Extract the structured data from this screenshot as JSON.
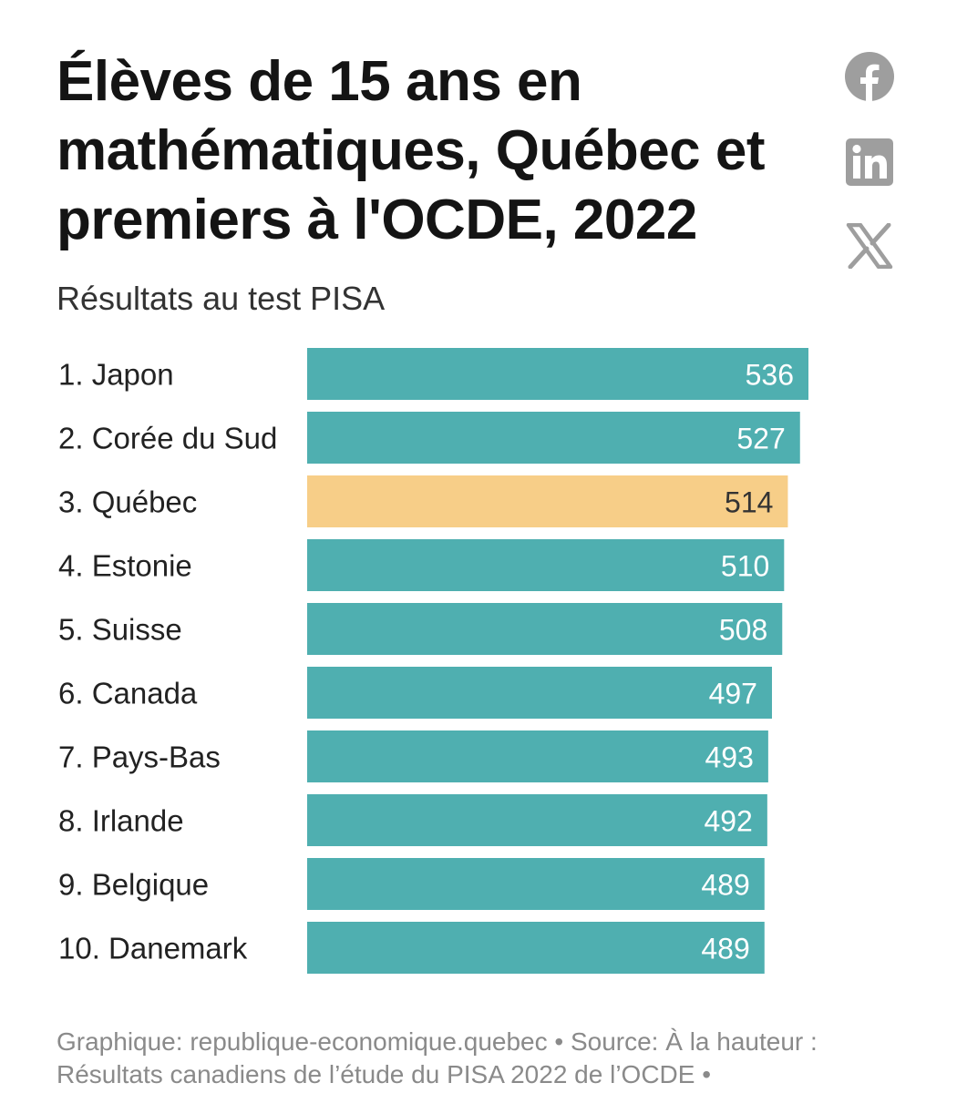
{
  "title": "Élèves de 15 ans en mathématiques, Québec et premiers à l'OCDE, 2022",
  "subtitle": "Résultats au test PISA",
  "share": {
    "icons": [
      "facebook-icon",
      "linkedin-icon",
      "x-icon"
    ],
    "icon_color": "#9e9e9e"
  },
  "footer": "Graphique: republique-economique.quebec • Source: À la hauteur : Résultats canadiens de l’étude du PISA 2022 de l’OCDE •",
  "chart_data": {
    "type": "bar",
    "orientation": "horizontal",
    "title": "Élèves de 15 ans en mathématiques, Québec et premiers à l'OCDE, 2022",
    "subtitle": "Résultats au test PISA",
    "categories": [
      "1. Japon",
      "2. Corée du Sud",
      "3. Québec",
      "4. Estonie",
      "5. Suisse",
      "6. Canada",
      "7. Pays-Bas",
      "8. Irlande",
      "9. Belgique",
      "10. Danemark"
    ],
    "values": [
      536,
      527,
      514,
      510,
      508,
      497,
      493,
      492,
      489,
      489
    ],
    "value_labels": [
      "536",
      "527",
      "514",
      "510",
      "508",
      "497",
      "493",
      "492",
      "489",
      "489"
    ],
    "highlight": "3. Québec",
    "colors": {
      "default": "#4fafb0",
      "highlight": "#f7ce88",
      "label_on_default": "#ffffff",
      "label_on_highlight": "#333333"
    },
    "xlim": [
      0,
      536
    ],
    "grid": false,
    "legend": "none"
  }
}
